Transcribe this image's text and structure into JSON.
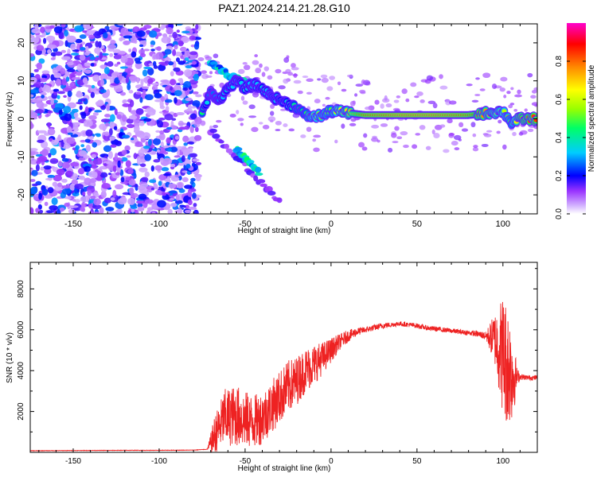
{
  "title": "PAZ1.2024.214.21.28.G10",
  "chart_data": [
    {
      "type": "heatmap",
      "xlabel": "Height of straight line (km)",
      "ylabel": "Frequency (Hz)",
      "xlim": [
        -175,
        120
      ],
      "ylim": [
        -25,
        25
      ],
      "xticks": [
        -150,
        -100,
        -50,
        0,
        50,
        100
      ],
      "yticks": [
        -20,
        -10,
        0,
        10,
        20
      ],
      "colorbar": {
        "label": "Normalized spectral amplitude",
        "range": [
          0,
          1
        ],
        "ticks": [
          "0.0",
          "0.2",
          "0.4",
          "0.6",
          "0.8"
        ],
        "colors": [
          "#ffffff",
          "#cc99ff",
          "#8000ff",
          "#0000ff",
          "#00c8ff",
          "#00ff80",
          "#a0ff00",
          "#ffff00",
          "#ff8000",
          "#ff0000",
          "#ff00c0"
        ]
      },
      "noise_region": {
        "x": [
          -175,
          -77
        ],
        "y": [
          -25,
          25
        ],
        "amplitude": [
          0.05,
          0.3
        ]
      },
      "ridge": [
        {
          "x": -75,
          "y": 1.5,
          "a": 0.45
        },
        {
          "x": -70,
          "y": 7,
          "a": 0.25
        },
        {
          "x": -65,
          "y": 5,
          "a": 0.3
        },
        {
          "x": -60,
          "y": 8,
          "a": 0.35
        },
        {
          "x": -55,
          "y": 10,
          "a": 0.3
        },
        {
          "x": -50,
          "y": 8,
          "a": 0.35
        },
        {
          "x": -45,
          "y": 9,
          "a": 0.3
        },
        {
          "x": -40,
          "y": 8,
          "a": 0.35
        },
        {
          "x": -35,
          "y": 6,
          "a": 0.3
        },
        {
          "x": -30,
          "y": 5,
          "a": 0.35
        },
        {
          "x": -25,
          "y": 4,
          "a": 0.35
        },
        {
          "x": -20,
          "y": 3,
          "a": 0.45
        },
        {
          "x": -15,
          "y": 1,
          "a": 0.45
        },
        {
          "x": -10,
          "y": 0.5,
          "a": 0.6
        },
        {
          "x": -5,
          "y": 1,
          "a": 0.55
        },
        {
          "x": 0,
          "y": 2,
          "a": 0.5
        },
        {
          "x": 5,
          "y": 2,
          "a": 0.65
        },
        {
          "x": 10,
          "y": 1.5,
          "a": 0.7
        },
        {
          "x": 20,
          "y": 1,
          "a": 0.9
        },
        {
          "x": 40,
          "y": 1,
          "a": 0.95
        },
        {
          "x": 60,
          "y": 1,
          "a": 0.95
        },
        {
          "x": 80,
          "y": 1,
          "a": 0.9
        },
        {
          "x": 90,
          "y": 1.5,
          "a": 0.75
        },
        {
          "x": 100,
          "y": 2,
          "a": 0.6
        },
        {
          "x": 105,
          "y": -1,
          "a": 0.5
        },
        {
          "x": 110,
          "y": 0,
          "a": 0.8
        },
        {
          "x": 120,
          "y": 0,
          "a": 0.85
        }
      ],
      "branches": [
        {
          "x": [
            -70,
            -58
          ],
          "y": [
            15,
            11
          ],
          "a": 0.35
        },
        {
          "x": [
            -58,
            -42
          ],
          "y": [
            11,
            9
          ],
          "a": 0.35
        },
        {
          "x": [
            -70,
            -30
          ],
          "y": [
            -3,
            -22
          ],
          "a": 0.15
        },
        {
          "x": [
            -55,
            -42
          ],
          "y": [
            -8,
            -14
          ],
          "a": 0.4
        }
      ]
    },
    {
      "type": "line",
      "xlabel": "Height of straight line (km)",
      "ylabel": "SNR (10 * v/v)",
      "xlim": [
        -175,
        120
      ],
      "ylim": [
        0,
        9300
      ],
      "xticks": [
        -150,
        -100,
        -50,
        0,
        50,
        100
      ],
      "yticks": [
        2000,
        4000,
        6000,
        8000
      ],
      "series": [
        {
          "color": "#ee2222",
          "x": [
            -175,
            -150,
            -120,
            -100,
            -80,
            -72,
            -68,
            -62,
            -55,
            -50,
            -45,
            -40,
            -35,
            -30,
            -25,
            -20,
            -15,
            -10,
            -5,
            0,
            5,
            10,
            15,
            20,
            25,
            30,
            35,
            40,
            45,
            50,
            55,
            60,
            65,
            70,
            75,
            80,
            85,
            90,
            95,
            100,
            103,
            106,
            108,
            110,
            115,
            120
          ],
          "y": [
            80,
            90,
            100,
            100,
            110,
            150,
            800,
            1700,
            1800,
            1600,
            1500,
            1700,
            2200,
            2700,
            3200,
            3500,
            4000,
            4300,
            4600,
            5000,
            5400,
            5700,
            5900,
            6000,
            6100,
            6200,
            6250,
            6300,
            6250,
            6200,
            6100,
            6050,
            6000,
            5950,
            5900,
            5850,
            5800,
            5700,
            5600,
            4800,
            4200,
            3800,
            3700,
            3700,
            3650,
            3650
          ],
          "noise": [
            10,
            10,
            10,
            10,
            10,
            10,
            900,
            1400,
            1500,
            1400,
            1300,
            1300,
            1300,
            1300,
            1300,
            1200,
            1100,
            1000,
            800,
            600,
            400,
            300,
            200,
            150,
            150,
            150,
            120,
            120,
            120,
            120,
            120,
            120,
            120,
            120,
            120,
            120,
            150,
            200,
            1200,
            3000,
            3000,
            2200,
            500,
            150,
            120,
            120
          ]
        }
      ]
    }
  ]
}
